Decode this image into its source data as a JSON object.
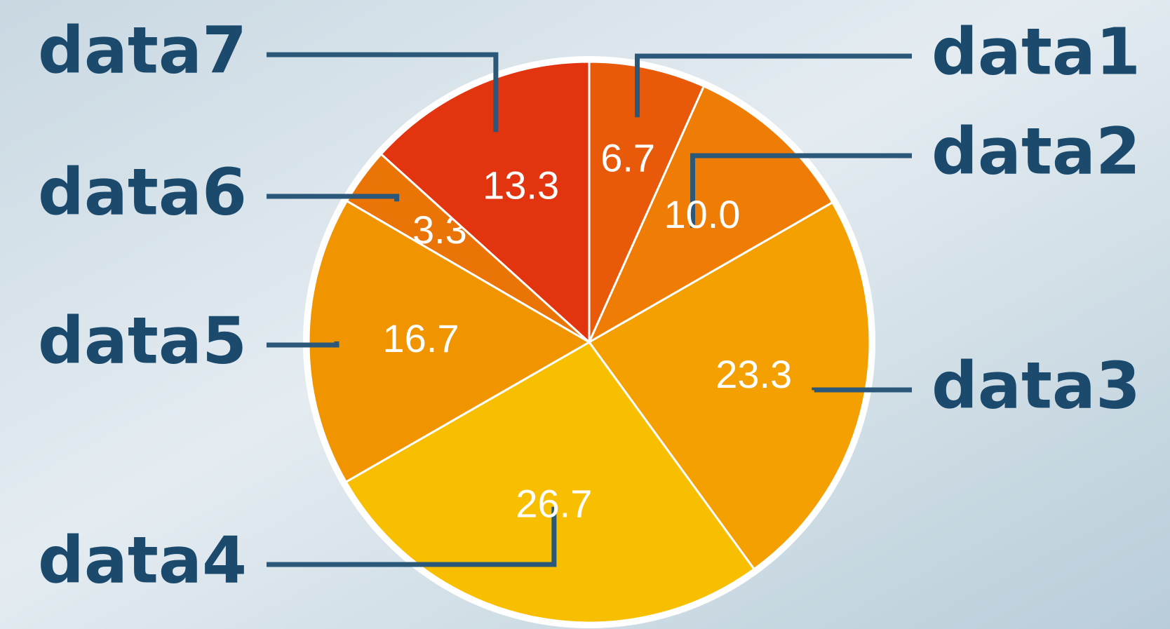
{
  "chart_data": {
    "type": "pie",
    "categories": [
      "data1",
      "data2",
      "data3",
      "data4",
      "data5",
      "data6",
      "data7"
    ],
    "values": [
      6.7,
      10.0,
      23.3,
      26.7,
      16.7,
      3.3,
      13.3
    ],
    "value_labels": [
      "6.7",
      "10.0",
      "23.3",
      "26.7",
      "16.7",
      "3.3",
      "13.3"
    ],
    "colors": [
      "#e85a0a",
      "#ef7d05",
      "#f3a000",
      "#f8bf00",
      "#f09400",
      "#ea7406",
      "#e2340f"
    ]
  }
}
